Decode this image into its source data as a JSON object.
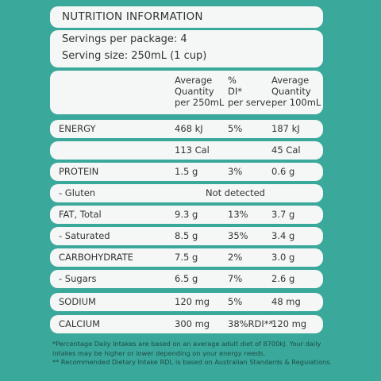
{
  "title": "NUTRITION INFORMATION",
  "servings": {
    "per_package": "Servings per package: 4",
    "serving_size": "Serving size: 250mL (1 cup)"
  },
  "columns": {
    "avg_serve": [
      "Average",
      "Quantity",
      "per 250mL"
    ],
    "di": [
      "%",
      "DI*",
      "per serve"
    ],
    "avg_100": [
      "Average",
      "Quantity",
      "per 100mL"
    ]
  },
  "rows": [
    {
      "name": "ENERGY",
      "serve": "468 kJ",
      "di": "5%",
      "per100": "187 kJ"
    },
    {
      "name": "",
      "serve": "113 Cal",
      "di": "",
      "per100": "45 Cal"
    },
    {
      "name": "PROTEIN",
      "serve": "1.5 g",
      "di": "3%",
      "per100": "0.6 g"
    },
    {
      "name": "- Gluten",
      "span": "Not detected"
    },
    {
      "name": "FAT, Total",
      "serve": "9.3 g",
      "di": "13%",
      "per100": "3.7 g"
    },
    {
      "name": " - Saturated",
      "serve": "8.5 g",
      "di": "35%",
      "per100": "3.4 g"
    },
    {
      "name": "CARBOHYDRATE",
      "serve": "7.5 g",
      "di": "2%",
      "per100": "3.0 g"
    },
    {
      "name": " - Sugars",
      "serve": "6.5 g",
      "di": "7%",
      "per100": "2.6 g"
    },
    {
      "name": "SODIUM",
      "serve": "120 mg",
      "di": "5%",
      "per100": "48 mg"
    },
    {
      "name": "CALCIUM",
      "serve": "300 mg",
      "di": "38%RDI**",
      "per100": "120 mg"
    }
  ],
  "footnotes": [
    "*Percentage Daily Intakes are based on an average adult diet of 8700kJ. Your daily",
    "intakes may be higher or lower depending on your energy needs.",
    "** Recommended Dietary Intake RDI, is based on Australian Standards & Regulations."
  ]
}
